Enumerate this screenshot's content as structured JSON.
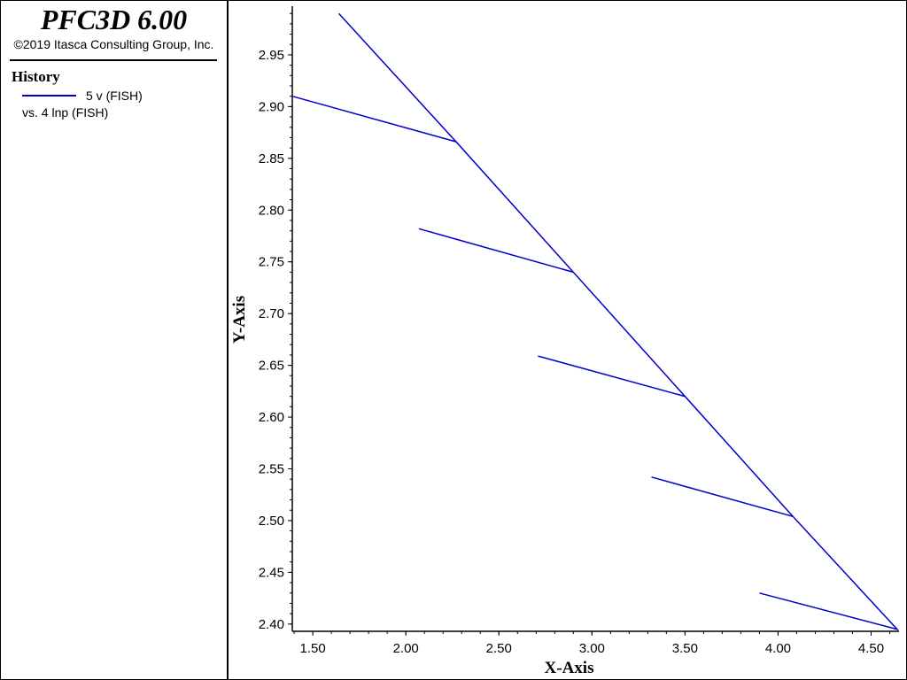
{
  "app": {
    "title": "PFC3D 6.00",
    "copyright": "©2019 Itasca Consulting Group, Inc."
  },
  "legend": {
    "heading": "History",
    "series_label": "5 v (FISH)",
    "vs_label": "vs. 4 lnp (FISH)",
    "swatch_color": "#0000cc"
  },
  "chart_data": {
    "type": "line",
    "title": "",
    "xlabel": "X-Axis",
    "ylabel": "Y-Axis",
    "xlim": [
      1.39,
      4.65
    ],
    "ylim": [
      2.393,
      2.997
    ],
    "xticks": [
      1.5,
      2.0,
      2.5,
      3.0,
      3.5,
      4.0,
      4.5
    ],
    "xtick_labels": [
      "1.50",
      "2.00",
      "2.50",
      "3.00",
      "3.50",
      "4.00",
      "4.50"
    ],
    "yticks": [
      2.4,
      2.45,
      2.5,
      2.55,
      2.6,
      2.65,
      2.7,
      2.75,
      2.8,
      2.85,
      2.9,
      2.95
    ],
    "ytick_labels": [
      "2.40",
      "2.45",
      "2.50",
      "2.55",
      "2.60",
      "2.65",
      "2.70",
      "2.75",
      "2.80",
      "2.85",
      "2.90",
      "2.95"
    ],
    "grid": false,
    "series": [
      {
        "color": "#0000cc",
        "x": [
          1.64,
          2.27,
          1.39,
          2.27,
          2.9,
          2.07,
          2.9,
          3.5,
          2.71,
          3.5,
          4.08,
          3.32,
          4.08,
          4.64,
          3.9,
          4.64
        ],
        "y": [
          2.99,
          2.866,
          2.91,
          2.866,
          2.74,
          2.782,
          2.74,
          2.62,
          2.659,
          2.62,
          2.504,
          2.542,
          2.504,
          2.395,
          2.43,
          2.395
        ]
      }
    ]
  }
}
